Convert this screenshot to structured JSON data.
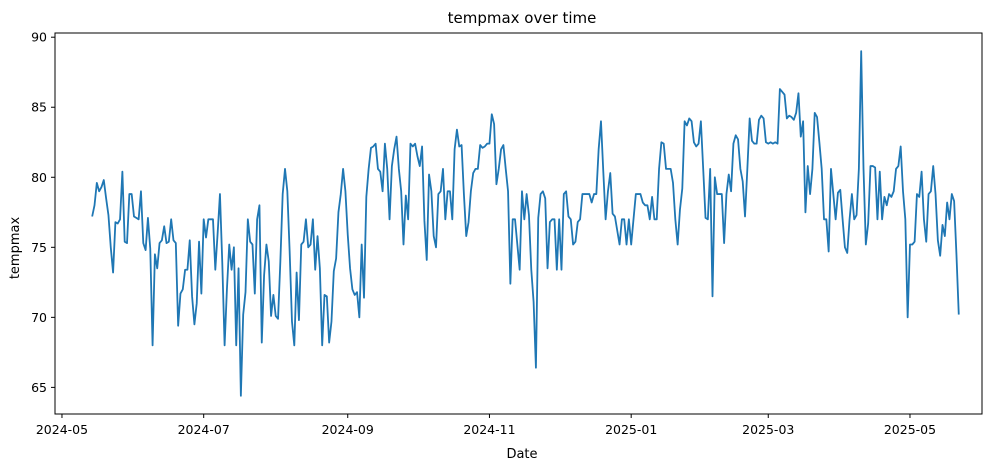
{
  "chart_data": {
    "type": "line",
    "title": "tempmax over time",
    "xlabel": "Date",
    "ylabel": "tempmax",
    "x_type": "date",
    "xlim": [
      "2024-04-28",
      "2025-06-01"
    ],
    "ylim": [
      63.1,
      90.3
    ],
    "x_ticks": [
      "2024-05-01",
      "2024-07-01",
      "2024-09-01",
      "2024-11-01",
      "2025-01-01",
      "2025-03-01",
      "2025-05-01"
    ],
    "x_tick_labels": [
      "2024-05",
      "2024-07",
      "2024-09",
      "2024-11",
      "2025-01",
      "2025-03",
      "2025-05"
    ],
    "y_ticks": [
      65,
      70,
      75,
      80,
      85,
      90
    ],
    "y_tick_labels": [
      "65",
      "70",
      "75",
      "80",
      "85",
      "90"
    ],
    "grid": false,
    "legend": "none",
    "color": "#1f77b4",
    "series": [
      {
        "start_date": "2024-05-14",
        "step_days": 1,
        "values": [
          77.2,
          78.0,
          79.6,
          79.0,
          79.3,
          79.8,
          78.5,
          77.3,
          75.0,
          73.2,
          76.8,
          76.7,
          77.0,
          80.4,
          75.4,
          75.3,
          78.8,
          78.8,
          77.2,
          77.1,
          77.0,
          79.0,
          75.3,
          74.8,
          77.1,
          74.9,
          68.0,
          74.5,
          73.5,
          75.3,
          75.5,
          76.5,
          75.3,
          75.4,
          77.0,
          75.5,
          75.3,
          69.4,
          71.7,
          72.0,
          73.4,
          73.4,
          75.5,
          71.5,
          69.5,
          71.0,
          75.4,
          71.7,
          77.0,
          75.7,
          77.0,
          77.0,
          77.0,
          73.4,
          76.0,
          78.8,
          73.9,
          68.0,
          72.0,
          75.2,
          73.4,
          75.0,
          68.0,
          73.5,
          64.4,
          70.2,
          71.8,
          77.0,
          75.4,
          75.2,
          71.7,
          77.0,
          78.0,
          68.2,
          73.0,
          75.2,
          74.0,
          70.1,
          71.6,
          70.1,
          69.9,
          74.0,
          78.8,
          80.6,
          79.0,
          74.7,
          69.7,
          68.0,
          73.2,
          69.8,
          75.2,
          75.4,
          77.0,
          75.0,
          75.2,
          77.0,
          73.4,
          75.8,
          73.5,
          68.0,
          71.6,
          71.5,
          68.2,
          69.7,
          73.3,
          74.2,
          77.5,
          78.8,
          80.6,
          79.0,
          75.9,
          73.5,
          72.0,
          71.6,
          71.8,
          70.0,
          75.2,
          71.4,
          78.6,
          80.6,
          82.1,
          82.2,
          82.4,
          80.6,
          80.4,
          79.0,
          82.4,
          80.6,
          77.0,
          80.8,
          82.0,
          82.9,
          80.6,
          79.0,
          75.2,
          78.7,
          77.0,
          82.4,
          82.2,
          82.4,
          81.5,
          80.8,
          82.2,
          76.9,
          74.1,
          80.2,
          79.0,
          75.8,
          75.0,
          78.8,
          79.0,
          80.6,
          77.0,
          79.0,
          79.0,
          77.0,
          82.0,
          83.4,
          82.2,
          82.3,
          78.8,
          75.8,
          76.8,
          79.0,
          80.3,
          80.6,
          80.6,
          82.3,
          82.1,
          82.2,
          82.4,
          82.4,
          84.5,
          83.8,
          79.5,
          80.6,
          82.0,
          82.3,
          80.6,
          79.0,
          72.4,
          77.0,
          77.0,
          75.2,
          73.4,
          79.0,
          77.0,
          78.8,
          77.3,
          73.4,
          71.1,
          66.4,
          77.1,
          78.8,
          79.0,
          78.5,
          73.5,
          76.8,
          77.0,
          77.0,
          73.4,
          77.0,
          73.4,
          78.8,
          79.0,
          77.2,
          77.0,
          75.2,
          75.4,
          76.8,
          77.0,
          78.8,
          78.8,
          78.8,
          78.8,
          78.2,
          78.8,
          78.8,
          82.0,
          84.0,
          80.4,
          77.0,
          79.0,
          80.3,
          77.4,
          77.2,
          76.2,
          75.2,
          77.0,
          77.0,
          75.2,
          77.0,
          75.2,
          77.0,
          78.8,
          78.8,
          78.8,
          78.2,
          78.0,
          78.0,
          77.0,
          78.6,
          77.0,
          77.0,
          80.6,
          82.5,
          82.4,
          80.6,
          80.6,
          80.6,
          79.6,
          77.0,
          75.2,
          77.7,
          79.2,
          84.0,
          83.7,
          84.2,
          84.0,
          82.5,
          82.2,
          82.4,
          84.0,
          80.6,
          77.1,
          77.0,
          80.6,
          71.5,
          80.0,
          78.8,
          78.8,
          78.8,
          75.3,
          78.8,
          80.2,
          79.0,
          82.4,
          83.0,
          82.7,
          80.6,
          79.7,
          77.2,
          80.6,
          84.2,
          82.6,
          82.4,
          82.4,
          84.1,
          84.4,
          84.2,
          82.5,
          82.4,
          82.5,
          82.4,
          82.5,
          82.4,
          86.3,
          86.1,
          85.9,
          84.2,
          84.4,
          84.3,
          84.1,
          84.6,
          86.0,
          82.9,
          84.0,
          77.5,
          80.8,
          78.8,
          80.6,
          84.6,
          84.3,
          82.5,
          80.6,
          77.0,
          77.0,
          74.7,
          80.6,
          78.8,
          77.0,
          78.9,
          79.1,
          77.0,
          75.0,
          74.6,
          77.0,
          78.8,
          77.0,
          77.3,
          80.6,
          89.0,
          80.6,
          75.2,
          76.7,
          80.8,
          80.8,
          80.7,
          77.0,
          80.4,
          77.0,
          78.6,
          78.0,
          78.8,
          78.6,
          79.0,
          80.6,
          80.8,
          82.2,
          79.0,
          77.0,
          70.0,
          75.2,
          75.2,
          75.4,
          78.8,
          78.6,
          80.4,
          77.0,
          75.4,
          78.8,
          79.0,
          80.8,
          78.8,
          75.5,
          74.4,
          76.6,
          75.8,
          78.2,
          77.0,
          78.8,
          78.3,
          74.5,
          70.2
        ]
      }
    ]
  }
}
